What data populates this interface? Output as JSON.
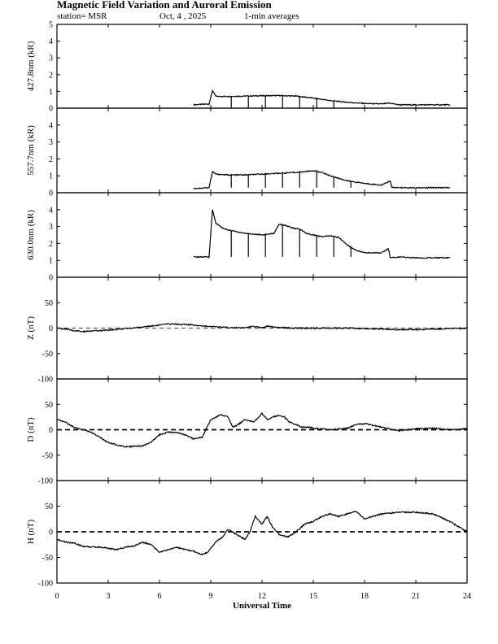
{
  "header": {
    "title": "Magnetic Field Variation and Auroral Emission",
    "station": "station= MSR",
    "date": "Oct, 4 , 2025",
    "averaging": "1-min averages"
  },
  "colors": {
    "line": "#000000",
    "background": "#ffffff"
  },
  "chart_data": [
    {
      "type": "line",
      "panel": "427.8nm",
      "ylabel": "427.8nm (kR)",
      "ylim": [
        0,
        5
      ],
      "yticks": [
        0,
        1,
        2,
        3,
        4,
        5
      ],
      "x": [
        8,
        8.9,
        9.1,
        9.3,
        10,
        11,
        12,
        13,
        14,
        15,
        16,
        17,
        18,
        19,
        19.5,
        20,
        21,
        22,
        23
      ],
      "values": [
        0.2,
        0.25,
        1.05,
        0.7,
        0.7,
        0.72,
        0.74,
        0.75,
        0.72,
        0.6,
        0.45,
        0.35,
        0.28,
        0.25,
        0.3,
        0.2,
        0.2,
        0.2,
        0.2
      ],
      "spikes_x": [
        10.2,
        11.2,
        12.2,
        13.2,
        14.2,
        15.2,
        16.2
      ],
      "spike_bottom": 0.0
    },
    {
      "type": "line",
      "panel": "557.7nm",
      "ylabel": "557.7nm (kR)",
      "ylim": [
        0,
        5
      ],
      "yticks": [
        0,
        1,
        2,
        3,
        4
      ],
      "x": [
        8,
        8.9,
        9.1,
        9.3,
        10,
        11,
        12,
        13,
        14,
        15,
        15.5,
        16,
        17,
        18,
        19,
        19.5,
        19.6,
        20,
        21,
        22,
        23
      ],
      "values": [
        0.25,
        0.3,
        1.25,
        1.1,
        1.05,
        1.05,
        1.1,
        1.15,
        1.2,
        1.3,
        1.2,
        1.0,
        0.7,
        0.55,
        0.45,
        0.7,
        0.3,
        0.3,
        0.28,
        0.3,
        0.3
      ],
      "spikes_x": [
        10.2,
        11.2,
        12.2,
        13.2,
        14.2,
        15.2,
        16.2,
        17.2
      ],
      "spike_bottom": 0.3
    },
    {
      "type": "line",
      "panel": "630.0nm",
      "ylabel": "630.0nm (kR)",
      "ylim": [
        0,
        5
      ],
      "yticks": [
        0,
        1,
        2,
        3,
        4
      ],
      "x": [
        8,
        8.9,
        9.1,
        9.3,
        9.7,
        10,
        11,
        12,
        12.7,
        13,
        13.4,
        13.8,
        14.2,
        14.6,
        15,
        15.5,
        16,
        16.5,
        17,
        17.5,
        18,
        19,
        19.4,
        19.5,
        20,
        21,
        22,
        23
      ],
      "values": [
        1.2,
        1.2,
        4.0,
        3.2,
        2.9,
        2.8,
        2.6,
        2.5,
        2.6,
        3.15,
        3.05,
        2.9,
        2.85,
        2.6,
        2.5,
        2.4,
        2.45,
        2.35,
        1.9,
        1.6,
        1.45,
        1.45,
        1.7,
        1.15,
        1.2,
        1.15,
        1.15,
        1.15
      ],
      "spikes_x": [
        10.2,
        11.2,
        12.2,
        13.2,
        14.2,
        15.2,
        16.2,
        17.2
      ],
      "spike_bottom": 1.2
    },
    {
      "type": "line",
      "panel": "Z",
      "ylabel": "Z (nT)",
      "ylim": [
        -100,
        100
      ],
      "yticks": [
        -100,
        -50,
        0,
        50
      ],
      "zero_line": "thin-dashed",
      "x": [
        0,
        0.5,
        1,
        1.5,
        2,
        3,
        4,
        5,
        6,
        6.5,
        7,
        8,
        9,
        10,
        11,
        11.5,
        12,
        12.3,
        13,
        14,
        15,
        16,
        17,
        18,
        19,
        20,
        21,
        22,
        23,
        24
      ],
      "values": [
        0,
        -2,
        -5,
        -7,
        -6,
        -4,
        -1,
        2,
        6,
        8,
        8,
        6,
        3,
        1,
        1,
        3,
        1,
        4,
        1,
        0,
        0,
        0,
        0,
        -1,
        -2,
        -3,
        -3,
        -2,
        -1,
        0
      ]
    },
    {
      "type": "line",
      "panel": "D",
      "ylabel": "D (nT)",
      "ylim": [
        -100,
        100
      ],
      "yticks": [
        -100,
        -50,
        0,
        50
      ],
      "zero_line": "thick-dashed",
      "x": [
        0,
        0.5,
        1,
        1.5,
        2,
        2.5,
        3,
        3.5,
        4,
        4.5,
        5,
        5.5,
        6,
        6.5,
        7,
        7.5,
        8,
        8.5,
        9,
        9.3,
        9.6,
        10,
        10.3,
        10.6,
        11,
        11.5,
        12,
        12.3,
        12.6,
        13,
        13.3,
        13.6,
        14,
        14.3,
        14.7,
        15,
        16,
        17,
        17.5,
        18,
        19,
        20,
        21,
        22,
        23,
        24
      ],
      "values": [
        20,
        15,
        5,
        0,
        -5,
        -15,
        -25,
        -30,
        -33,
        -33,
        -32,
        -25,
        -10,
        -5,
        -5,
        -10,
        -18,
        -15,
        20,
        25,
        30,
        25,
        5,
        10,
        20,
        15,
        32,
        20,
        25,
        28,
        25,
        15,
        10,
        5,
        5,
        3,
        0,
        3,
        10,
        12,
        5,
        -2,
        2,
        3,
        0,
        2
      ]
    },
    {
      "type": "line",
      "panel": "H",
      "ylabel": "H (nT)",
      "ylim": [
        -100,
        100
      ],
      "yticks": [
        -100,
        -50,
        0,
        50
      ],
      "zero_line": "thick-dashed",
      "x": [
        0,
        0.5,
        1,
        1.5,
        2,
        2.5,
        3,
        3.5,
        4,
        4.5,
        5,
        5.5,
        6,
        6.5,
        7,
        7.5,
        8,
        8.5,
        8.8,
        9.3,
        9.7,
        10,
        10.5,
        11,
        11.3,
        11.6,
        12,
        12.3,
        12.6,
        13,
        13.5,
        14,
        14.5,
        15,
        15.5,
        16,
        16.5,
        17,
        17.5,
        18,
        19,
        20,
        21,
        22,
        23,
        24
      ],
      "values": [
        -15,
        -20,
        -22,
        -28,
        -30,
        -30,
        -32,
        -35,
        -30,
        -28,
        -20,
        -25,
        -40,
        -35,
        -30,
        -35,
        -38,
        -45,
        -40,
        -20,
        -10,
        5,
        -5,
        -15,
        0,
        30,
        15,
        30,
        10,
        -5,
        -10,
        0,
        15,
        20,
        30,
        35,
        30,
        35,
        40,
        25,
        35,
        38,
        38,
        35,
        20,
        0
      ]
    }
  ],
  "xaxis": {
    "label": "Universal Time",
    "xlim": [
      0,
      24
    ],
    "ticks": [
      0,
      3,
      6,
      9,
      12,
      15,
      18,
      21,
      24
    ]
  }
}
